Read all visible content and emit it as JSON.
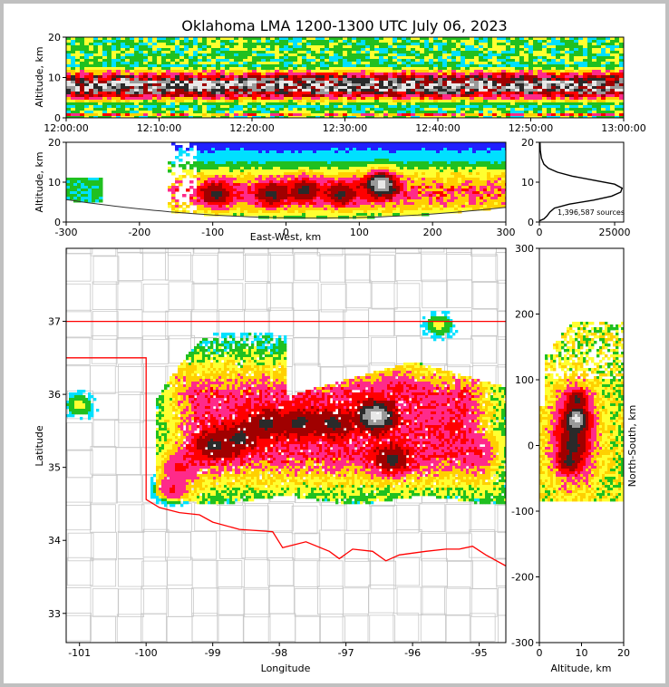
{
  "chart_data": {
    "title": "Oklahoma LMA 1200-1300 UTC July 06, 2023",
    "type": "heatmap",
    "colors": {
      "density_scale": [
        "#e8e8e8",
        "#9a9a9a",
        "#2a2a2a",
        "#a00000",
        "#ff0000",
        "#ff2a8a",
        "#ffd000",
        "#ffff30",
        "#20c020",
        "#00e0ff",
        "#2020ff",
        "#b000ff"
      ],
      "state_border": "#ff0000",
      "county_lines": "#c8c8c8",
      "profile_line": "#000000"
    },
    "panels": {
      "time_altitude": {
        "ylabel": "Altitude, km",
        "ylim": [
          0,
          20
        ],
        "yticks": [
          "0",
          "10",
          "20"
        ],
        "xticks": [
          "12:00:00",
          "12:10:00",
          "12:20:00",
          "12:30:00",
          "12:40:00",
          "12:50:00",
          "13:00:00"
        ],
        "xlim": [
          "12:00:00",
          "13:00:00"
        ],
        "peak_density_altitude_km": 8
      },
      "ew_altitude": {
        "xlabel": "East-West, km",
        "ylabel": "Altitude, km",
        "xlim": [
          -300,
          300
        ],
        "ylim": [
          0,
          20
        ],
        "xticks": [
          "-300",
          "-200",
          "-100",
          "0",
          "100",
          "200",
          "300"
        ],
        "yticks": [
          "0",
          "10",
          "20"
        ],
        "cells": [
          {
            "x_km": -95,
            "alt_km": 7,
            "level": "high"
          },
          {
            "x_km": -20,
            "alt_km": 7,
            "level": "high"
          },
          {
            "x_km": 25,
            "alt_km": 8,
            "level": "high"
          },
          {
            "x_km": 75,
            "alt_km": 7,
            "level": "high"
          },
          {
            "x_km": 130,
            "alt_km": 9.5,
            "level": "peak"
          }
        ]
      },
      "altitude_histogram": {
        "xticks": [
          "0",
          "25000"
        ],
        "yticks": [
          "0",
          "10",
          "20"
        ],
        "xlim": [
          0,
          28000
        ],
        "ylim": [
          0,
          20
        ],
        "annotation": "1,396,587 sources",
        "profile": [
          {
            "alt": 0.3,
            "count": 0
          },
          {
            "alt": 0.8,
            "count": 1500
          },
          {
            "alt": 1.5,
            "count": 2500
          },
          {
            "alt": 2.5,
            "count": 3500
          },
          {
            "alt": 3.5,
            "count": 5000
          },
          {
            "alt": 4.5,
            "count": 10000
          },
          {
            "alt": 5.5,
            "count": 18000
          },
          {
            "alt": 6.5,
            "count": 24000
          },
          {
            "alt": 7.5,
            "count": 27000
          },
          {
            "alt": 8.5,
            "count": 27500
          },
          {
            "alt": 9.5,
            "count": 25000
          },
          {
            "alt": 10.5,
            "count": 18000
          },
          {
            "alt": 11.5,
            "count": 11000
          },
          {
            "alt": 12.5,
            "count": 6000
          },
          {
            "alt": 13.5,
            "count": 3000
          },
          {
            "alt": 14.5,
            "count": 1500
          },
          {
            "alt": 16,
            "count": 700
          },
          {
            "alt": 18,
            "count": 300
          },
          {
            "alt": 20,
            "count": 200
          }
        ]
      },
      "plan_view": {
        "xlabel": "Longitude",
        "ylabel": "Latitude",
        "xlim": [
          -101.2,
          -94.6
        ],
        "ylim": [
          32.6,
          38.0
        ],
        "xticks": [
          "-101",
          "-100",
          "-99",
          "-98",
          "-97",
          "-96",
          "-95"
        ],
        "yticks": [
          "33",
          "34",
          "35",
          "36",
          "37"
        ],
        "storm_cells": [
          {
            "lon": -99.5,
            "lat": 35.0,
            "level": "med"
          },
          {
            "lon": -99.0,
            "lat": 35.3,
            "level": "high"
          },
          {
            "lon": -98.6,
            "lat": 35.4,
            "level": "high"
          },
          {
            "lon": -98.2,
            "lat": 35.6,
            "level": "high"
          },
          {
            "lon": -97.7,
            "lat": 35.6,
            "level": "high"
          },
          {
            "lon": -97.2,
            "lat": 35.6,
            "level": "high"
          },
          {
            "lon": -96.55,
            "lat": 35.7,
            "level": "peak"
          },
          {
            "lon": -96.3,
            "lat": 35.1,
            "level": "high"
          },
          {
            "lon": -96.8,
            "lat": 35.95,
            "level": "med"
          },
          {
            "lon": -96.2,
            "lat": 36.1,
            "level": "med"
          },
          {
            "lon": -95.0,
            "lat": 35.2,
            "level": "med"
          },
          {
            "lon": -95.4,
            "lat": 35.55,
            "level": "med"
          },
          {
            "lon": -99.6,
            "lat": 34.7,
            "level": "med"
          },
          {
            "lon": -101.0,
            "lat": 35.85,
            "level": "low"
          },
          {
            "lon": -98.1,
            "lat": 34.9,
            "level": "low"
          },
          {
            "lon": -95.6,
            "lat": 36.95,
            "level": "low"
          }
        ]
      },
      "ns_altitude": {
        "xlabel": "Altitude, km",
        "ylabel": "North-South, km",
        "xlim": [
          0,
          20
        ],
        "ylim": [
          -300,
          300
        ],
        "xticks": [
          "0",
          "10",
          "20"
        ],
        "yticks": [
          "-300",
          "-200",
          "-100",
          "0",
          "100",
          "200",
          "300"
        ],
        "cells": [
          {
            "alt_km": 9,
            "y_km": 40,
            "level": "peak"
          },
          {
            "alt_km": 8,
            "y_km": 0,
            "level": "high"
          },
          {
            "alt_km": 7,
            "y_km": -25,
            "level": "high"
          },
          {
            "alt_km": 9,
            "y_km": 70,
            "level": "high"
          }
        ]
      }
    }
  }
}
